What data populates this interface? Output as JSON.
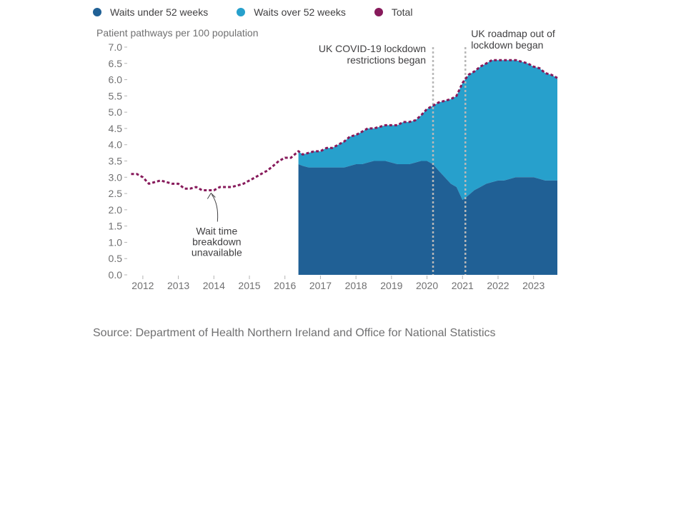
{
  "legend": {
    "items": [
      {
        "label": "Waits under 52 weeks",
        "color": "#206095"
      },
      {
        "label": "Waits over 52 weeks",
        "color": "#27a0cc"
      },
      {
        "label": "Total",
        "color": "#871a5b"
      }
    ]
  },
  "source": "Source: Department of Health Northern Ireland and Office for National Statistics",
  "chart_data": {
    "type": "area",
    "ylabel": "Patient pathways per 100 population",
    "xlabel": "",
    "ylim": [
      0,
      7
    ],
    "xlim": [
      2011.6,
      2023.67
    ],
    "yticks": [
      0,
      0.5,
      1,
      1.5,
      2,
      2.5,
      3,
      3.5,
      4,
      4.5,
      5,
      5.5,
      6,
      6.5,
      7
    ],
    "ytick_labels": [
      "0.0",
      "0.5",
      "1.0",
      "1.5",
      "2.0",
      "2.5",
      "3.0",
      "3.5",
      "4.0",
      "4.5",
      "5.0",
      "5.5",
      "6.0",
      "6.5",
      "7.0"
    ],
    "xticks": [
      2012,
      2013,
      2014,
      2015,
      2016,
      2017,
      2018,
      2019,
      2020,
      2021,
      2022,
      2023
    ],
    "xtick_labels": [
      "2012",
      "2013",
      "2014",
      "2015",
      "2016",
      "2017",
      "2018",
      "2019",
      "2020",
      "2021",
      "2022",
      "2023"
    ],
    "grid": false,
    "series": [
      {
        "name": "Waits under 52 weeks",
        "color": "#206095",
        "style": "stacked-area",
        "x": [
          2016.38,
          2016.5,
          2016.67,
          2016.83,
          2017.0,
          2017.17,
          2017.33,
          2017.5,
          2017.67,
          2017.83,
          2018.0,
          2018.17,
          2018.33,
          2018.5,
          2018.67,
          2018.83,
          2019.0,
          2019.17,
          2019.33,
          2019.5,
          2019.67,
          2019.83,
          2020.0,
          2020.17,
          2020.33,
          2020.5,
          2020.67,
          2020.83,
          2021.0,
          2021.17,
          2021.33,
          2021.5,
          2021.67,
          2021.83,
          2022.0,
          2022.17,
          2022.33,
          2022.5,
          2022.67,
          2022.83,
          2023.0,
          2023.17,
          2023.33,
          2023.5,
          2023.67
        ],
        "values": [
          3.4,
          3.35,
          3.3,
          3.3,
          3.3,
          3.3,
          3.3,
          3.3,
          3.3,
          3.35,
          3.4,
          3.4,
          3.45,
          3.5,
          3.5,
          3.5,
          3.45,
          3.4,
          3.4,
          3.4,
          3.45,
          3.5,
          3.5,
          3.4,
          3.2,
          3.0,
          2.8,
          2.7,
          2.3,
          2.45,
          2.6,
          2.7,
          2.8,
          2.85,
          2.9,
          2.9,
          2.95,
          3.0,
          3.0,
          3.0,
          3.0,
          2.95,
          2.9,
          2.9,
          2.9
        ]
      },
      {
        "name": "Waits over 52 weeks",
        "color": "#27a0cc",
        "style": "stacked-area",
        "x": [
          2016.38,
          2016.5,
          2016.67,
          2016.83,
          2017.0,
          2017.17,
          2017.33,
          2017.5,
          2017.67,
          2017.83,
          2018.0,
          2018.17,
          2018.33,
          2018.5,
          2018.67,
          2018.83,
          2019.0,
          2019.17,
          2019.33,
          2019.5,
          2019.67,
          2019.83,
          2020.0,
          2020.17,
          2020.33,
          2020.5,
          2020.67,
          2020.83,
          2021.0,
          2021.17,
          2021.33,
          2021.5,
          2021.67,
          2021.83,
          2022.0,
          2022.17,
          2022.33,
          2022.5,
          2022.67,
          2022.83,
          2023.0,
          2023.17,
          2023.33,
          2023.5,
          2023.67
        ],
        "values": [
          0.4,
          0.35,
          0.45,
          0.5,
          0.5,
          0.6,
          0.6,
          0.7,
          0.8,
          0.9,
          0.9,
          1.0,
          1.05,
          1.0,
          1.05,
          1.1,
          1.15,
          1.2,
          1.3,
          1.3,
          1.3,
          1.4,
          1.6,
          1.8,
          2.1,
          2.35,
          2.6,
          2.8,
          3.6,
          3.7,
          3.65,
          3.7,
          3.7,
          3.75,
          3.7,
          3.7,
          3.65,
          3.6,
          3.55,
          3.5,
          3.4,
          3.4,
          3.3,
          3.25,
          3.15
        ]
      },
      {
        "name": "Total",
        "color": "#871a5b",
        "style": "dotted-line",
        "x": [
          2011.67,
          2011.83,
          2012.0,
          2012.17,
          2012.33,
          2012.5,
          2012.67,
          2012.83,
          2013.0,
          2013.17,
          2013.33,
          2013.5,
          2013.67,
          2013.83,
          2014.0,
          2014.17,
          2014.33,
          2014.5,
          2014.67,
          2014.83,
          2015.0,
          2015.17,
          2015.33,
          2015.5,
          2015.67,
          2015.83,
          2016.0,
          2016.17,
          2016.38,
          2016.5,
          2016.67,
          2016.83,
          2017.0,
          2017.17,
          2017.33,
          2017.5,
          2017.67,
          2017.83,
          2018.0,
          2018.17,
          2018.33,
          2018.5,
          2018.67,
          2018.83,
          2019.0,
          2019.17,
          2019.33,
          2019.5,
          2019.67,
          2019.83,
          2020.0,
          2020.17,
          2020.33,
          2020.5,
          2020.67,
          2020.83,
          2021.0,
          2021.17,
          2021.33,
          2021.5,
          2021.67,
          2021.83,
          2022.0,
          2022.17,
          2022.33,
          2022.5,
          2022.67,
          2022.83,
          2023.0,
          2023.17,
          2023.33,
          2023.5,
          2023.67
        ],
        "values": [
          3.1,
          3.1,
          3.0,
          2.8,
          2.85,
          2.9,
          2.85,
          2.8,
          2.8,
          2.65,
          2.65,
          2.7,
          2.6,
          2.6,
          2.6,
          2.7,
          2.7,
          2.7,
          2.75,
          2.8,
          2.9,
          3.0,
          3.1,
          3.2,
          3.35,
          3.5,
          3.6,
          3.6,
          3.8,
          3.7,
          3.75,
          3.8,
          3.8,
          3.9,
          3.9,
          4.0,
          4.1,
          4.25,
          4.3,
          4.4,
          4.5,
          4.5,
          4.55,
          4.6,
          4.6,
          4.6,
          4.7,
          4.7,
          4.75,
          4.9,
          5.1,
          5.2,
          5.3,
          5.35,
          5.4,
          5.5,
          5.9,
          6.15,
          6.25,
          6.4,
          6.5,
          6.6,
          6.6,
          6.6,
          6.6,
          6.6,
          6.55,
          6.5,
          6.4,
          6.35,
          6.2,
          6.15,
          6.05
        ]
      }
    ],
    "annotations": [
      {
        "name": "covid-lockdown",
        "x": 2020.17,
        "lines": [
          "UK COVID-19 lockdown",
          "restrictions began"
        ],
        "side": "left"
      },
      {
        "name": "roadmap",
        "x": 2021.08,
        "lines": [
          "UK roadmap out of",
          "lockdown began"
        ],
        "side": "right"
      },
      {
        "name": "breakdown-unavailable",
        "x": 2013.9,
        "y": 2.6,
        "lines": [
          "Wait time",
          "breakdown",
          "unavailable"
        ],
        "side": "below"
      }
    ]
  }
}
